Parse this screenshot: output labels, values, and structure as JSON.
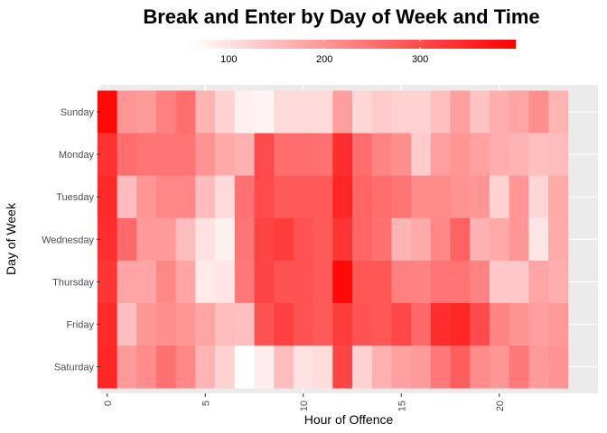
{
  "chart_data": {
    "type": "heatmap",
    "title": "Break and Enter by Day of Week and Time",
    "xlabel": "Hour of Offence",
    "ylabel": "Day of Week",
    "x": [
      0,
      1,
      2,
      3,
      4,
      5,
      6,
      7,
      8,
      9,
      10,
      11,
      12,
      13,
      14,
      15,
      16,
      17,
      18,
      19,
      20,
      21,
      22,
      23
    ],
    "x_ticks": [
      0,
      5,
      10,
      15,
      20
    ],
    "y_categories": [
      "Sunday",
      "Monday",
      "Tuesday",
      "Wednesday",
      "Thursday",
      "Friday",
      "Saturday"
    ],
    "color_scale": {
      "low": "#ffffff",
      "high": "#ff0000",
      "min": 60,
      "max": 400,
      "breaks": [
        100,
        200,
        300
      ]
    },
    "legend_position": "top",
    "grid": true,
    "values": [
      [
        390,
        200,
        195,
        230,
        255,
        160,
        120,
        80,
        75,
        110,
        110,
        110,
        190,
        115,
        130,
        120,
        120,
        145,
        190,
        140,
        170,
        180,
        210,
        160
      ],
      [
        335,
        255,
        245,
        245,
        245,
        205,
        175,
        165,
        300,
        255,
        255,
        250,
        340,
        255,
        225,
        210,
        130,
        190,
        200,
        185,
        170,
        160,
        145,
        150
      ],
      [
        345,
        150,
        200,
        220,
        220,
        150,
        110,
        250,
        300,
        280,
        280,
        280,
        350,
        265,
        255,
        245,
        215,
        215,
        205,
        200,
        120,
        200,
        115,
        175
      ],
      [
        340,
        260,
        195,
        195,
        150,
        100,
        80,
        245,
        310,
        320,
        290,
        280,
        330,
        265,
        250,
        160,
        175,
        220,
        270,
        165,
        175,
        200,
        95,
        175
      ],
      [
        330,
        180,
        180,
        220,
        180,
        90,
        95,
        240,
        310,
        290,
        290,
        280,
        390,
        285,
        285,
        230,
        225,
        245,
        245,
        225,
        135,
        135,
        180,
        170
      ],
      [
        345,
        145,
        200,
        210,
        200,
        180,
        150,
        145,
        290,
        315,
        290,
        280,
        320,
        290,
        285,
        305,
        260,
        340,
        350,
        300,
        225,
        205,
        190,
        195
      ],
      [
        350,
        195,
        215,
        250,
        220,
        160,
        120,
        60,
        85,
        150,
        100,
        105,
        310,
        120,
        165,
        185,
        195,
        240,
        275,
        215,
        200,
        240,
        195,
        205
      ]
    ]
  }
}
